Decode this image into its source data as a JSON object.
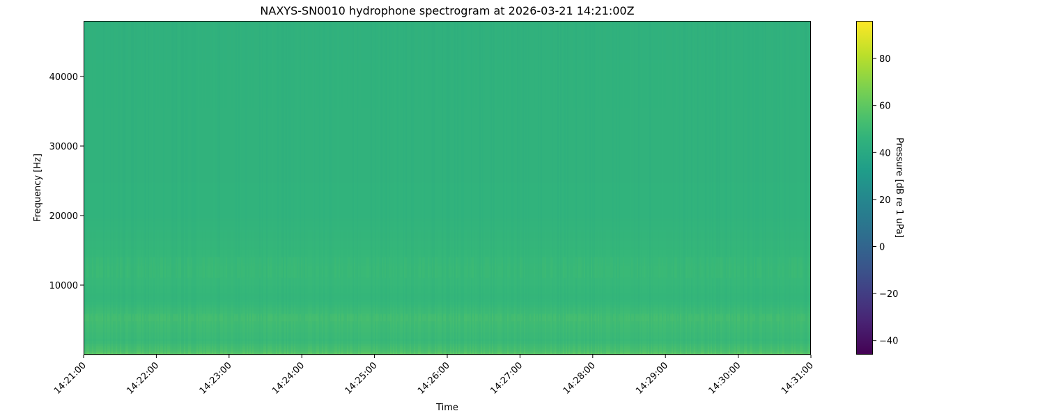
{
  "chart_data": {
    "type": "heatmap",
    "title": "NAXYS-SN0010 hydrophone spectrogram at 2026-03-21 14:21:00Z",
    "xlabel": "Time",
    "ylabel": "Frequency [Hz]",
    "x_ticks": [
      "14:21:00",
      "14:22:00",
      "14:23:00",
      "14:24:00",
      "14:25:00",
      "14:26:00",
      "14:27:00",
      "14:28:00",
      "14:29:00",
      "14:30:00",
      "14:31:00"
    ],
    "xlim": [
      "14:21:00",
      "14:31:00"
    ],
    "y_ticks": [
      10000,
      20000,
      30000,
      40000
    ],
    "y_tick_labels": [
      "10000",
      "20000",
      "30000",
      "40000"
    ],
    "ylim": [
      0,
      48000
    ],
    "colormap": "viridis",
    "colorbar": {
      "label": "Pressure [dB re 1 uPa]",
      "range": [
        -46,
        96
      ],
      "ticks": [
        -40,
        -20,
        0,
        20,
        40,
        60,
        80
      ],
      "tick_labels": [
        "−40",
        "−20",
        "0",
        "20",
        "40",
        "60",
        "80"
      ]
    },
    "approx_level_by_frequency": [
      {
        "freq_hz": 0,
        "db": 62
      },
      {
        "freq_hz": 500,
        "db": 56
      },
      {
        "freq_hz": 2000,
        "db": 50
      },
      {
        "freq_hz": 5200,
        "db": 53
      },
      {
        "freq_hz": 8000,
        "db": 48
      },
      {
        "freq_hz": 12000,
        "db": 50
      },
      {
        "freq_hz": 20000,
        "db": 46
      },
      {
        "freq_hz": 48000,
        "db": 45
      }
    ],
    "grid": false
  }
}
